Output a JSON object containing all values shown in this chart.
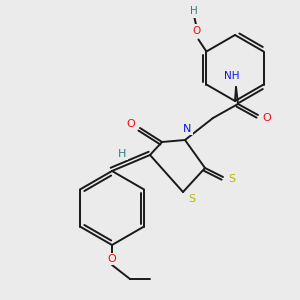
{
  "bg_color": "#ebebeb",
  "bond_color": "#1a1a1a",
  "atom_colors": {
    "N": "#1010ee",
    "O": "#ee1010",
    "S": "#b8b800",
    "H": "#2a8080",
    "C": "#1a1a1a"
  },
  "figsize": [
    3.0,
    3.0
  ],
  "dpi": 100,
  "xlim": [
    0,
    300
  ],
  "ylim": [
    0,
    300
  ]
}
